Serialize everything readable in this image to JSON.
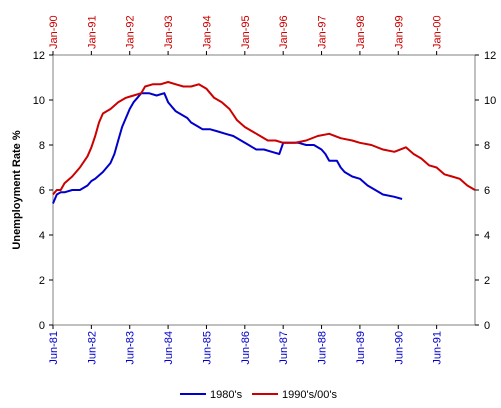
{
  "chart_data": {
    "type": "line",
    "title": "",
    "ylabel": "Unemployment Rate %",
    "ylim": [
      0,
      12
    ],
    "yticks": [
      "0",
      "2",
      "4",
      "6",
      "8",
      "10",
      "12"
    ],
    "x_bottom_labels": [
      "Jun-81",
      "Jun-82",
      "Jun-83",
      "Jun-84",
      "Jun-85",
      "Jun-86",
      "Jun-87",
      "Jun-88",
      "Jun-89",
      "Jun-90",
      "Jun-91"
    ],
    "x_top_labels": [
      "Jan-90",
      "Jan-91",
      "Jan-92",
      "Jan-93",
      "Jan-94",
      "Jan-95",
      "Jan-96",
      "Jan-97",
      "Jan-98",
      "Jan-99",
      "Jan-00"
    ],
    "x_unit": "years since series start",
    "xlim": [
      0,
      11
    ],
    "legend_position": "bottom",
    "colors": {
      "bottom_axis": "#0000cc",
      "top_axis": "#cc0000"
    },
    "series": [
      {
        "name": "1980's",
        "color": "#0000cc",
        "x": [
          0,
          0.1,
          0.2,
          0.3,
          0.5,
          0.7,
          0.9,
          1.0,
          1.1,
          1.3,
          1.5,
          1.6,
          1.7,
          1.8,
          1.9,
          2.0,
          2.1,
          2.2,
          2.3,
          2.5,
          2.7,
          2.9,
          3.0,
          3.1,
          3.2,
          3.3,
          3.5,
          3.6,
          3.8,
          3.9,
          4.1,
          4.3,
          4.5,
          4.7,
          4.9,
          5.1,
          5.2,
          5.3,
          5.5,
          5.7,
          5.9,
          6.0,
          6.2,
          6.4,
          6.6,
          6.8,
          7.0,
          7.1,
          7.2,
          7.4,
          7.5,
          7.6,
          7.8,
          8.0,
          8.2,
          8.4,
          8.6,
          8.9,
          9.1
        ],
        "y": [
          5.4,
          5.8,
          5.9,
          5.9,
          6.0,
          6.0,
          6.2,
          6.4,
          6.5,
          6.8,
          7.2,
          7.6,
          8.2,
          8.8,
          9.2,
          9.6,
          9.9,
          10.1,
          10.3,
          10.3,
          10.2,
          10.3,
          9.9,
          9.7,
          9.5,
          9.4,
          9.2,
          9.0,
          8.8,
          8.7,
          8.7,
          8.6,
          8.5,
          8.4,
          8.2,
          8.0,
          7.9,
          7.8,
          7.8,
          7.7,
          7.6,
          8.1,
          8.1,
          8.1,
          8.0,
          8.0,
          7.8,
          7.6,
          7.3,
          7.3,
          7.0,
          6.8,
          6.6,
          6.5,
          6.2,
          6.0,
          5.8,
          5.7,
          5.6
        ]
      },
      {
        "name": "1990's/00's",
        "color": "#cc0000",
        "x": [
          0,
          0.1,
          0.2,
          0.3,
          0.5,
          0.7,
          0.9,
          1.0,
          1.1,
          1.2,
          1.3,
          1.5,
          1.7,
          1.9,
          2.1,
          2.3,
          2.4,
          2.6,
          2.8,
          3.0,
          3.2,
          3.4,
          3.6,
          3.8,
          4.0,
          4.2,
          4.4,
          4.6,
          4.8,
          5.0,
          5.2,
          5.4,
          5.6,
          5.8,
          6.0,
          6.3,
          6.6,
          6.9,
          7.2,
          7.5,
          7.8,
          8.0,
          8.3,
          8.6,
          8.9,
          9.2,
          9.4,
          9.6,
          9.8,
          10.0,
          10.2,
          10.4,
          10.6,
          10.8,
          11.0
        ],
        "y": [
          5.8,
          6.0,
          6.0,
          6.3,
          6.6,
          7.0,
          7.5,
          7.9,
          8.4,
          9.0,
          9.4,
          9.6,
          9.9,
          10.1,
          10.2,
          10.3,
          10.6,
          10.7,
          10.7,
          10.8,
          10.7,
          10.6,
          10.6,
          10.7,
          10.5,
          10.1,
          9.9,
          9.6,
          9.1,
          8.8,
          8.6,
          8.4,
          8.2,
          8.2,
          8.1,
          8.1,
          8.2,
          8.4,
          8.5,
          8.3,
          8.2,
          8.1,
          8.0,
          7.8,
          7.7,
          7.9,
          7.6,
          7.4,
          7.1,
          7.0,
          6.7,
          6.6,
          6.5,
          6.2,
          6.0
        ]
      }
    ]
  }
}
